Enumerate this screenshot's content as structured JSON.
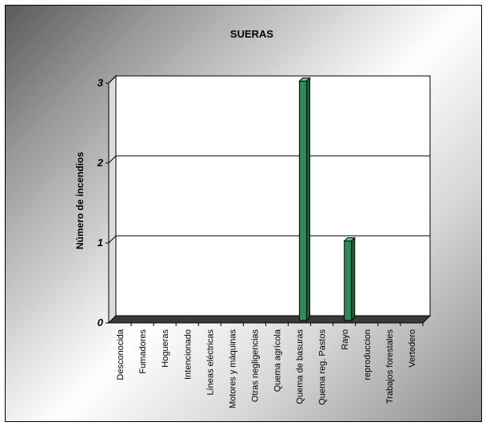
{
  "chart_data": {
    "type": "bar",
    "title": "SUERAS",
    "xlabel": "",
    "ylabel": "Número de incendios",
    "ylim": [
      0,
      3
    ],
    "yticks": [
      0,
      1,
      2,
      3
    ],
    "grid": true,
    "bar_color": "#2e8b57",
    "categories": [
      "Desconocida",
      "Fumadores",
      "Hogueras",
      "Intencionado",
      "Líneas eléctricas",
      "Motores y máquinas",
      "Otras negligencias",
      "Quema agrícola",
      "Quema de basuras",
      "Quema reg. Pastos",
      "Rayo",
      "reproduccion",
      "Trabajos forestales",
      "Vertedero"
    ],
    "values": [
      0,
      0,
      0,
      0,
      0,
      0,
      0,
      0,
      3,
      0,
      1,
      0,
      0,
      0
    ]
  }
}
